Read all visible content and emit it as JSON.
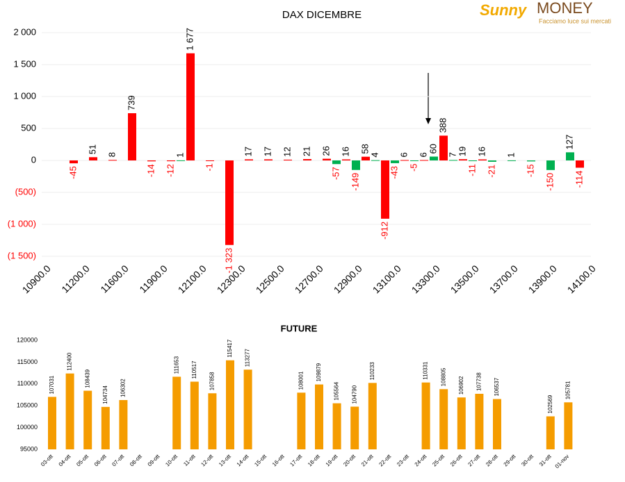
{
  "logo": {
    "brand": "Sunny",
    "name": "MONEY",
    "tagline": "Facciamo luce sui mercati"
  },
  "chart_data": [
    {
      "type": "bar",
      "title": "DAX DICEMBRE",
      "categories": [
        "10900.0",
        null,
        "11200.0",
        null,
        "11600.0",
        null,
        "11900.0",
        null,
        "12100.0",
        null,
        "12300.0",
        null,
        "12500.0",
        null,
        "12700.0",
        null,
        "12900.0",
        null,
        "13100.0",
        null,
        "13300.0",
        null,
        "13500.0",
        null,
        "13700.0",
        null,
        "13900.0",
        null,
        "14100.0"
      ],
      "series": [
        {
          "color": "#00b050",
          "values": [
            null,
            null,
            null,
            null,
            null,
            null,
            null,
            1,
            null,
            null,
            null,
            null,
            null,
            null,
            null,
            -57,
            -149,
            4,
            -43,
            -5,
            60,
            7,
            -11,
            -21,
            1,
            -15,
            -150,
            127,
            null
          ]
        },
        {
          "color": "#ff0000",
          "values": [
            null,
            -45,
            51,
            8,
            739,
            -14,
            -12,
            1677,
            -1,
            -1323,
            17,
            17,
            12,
            21,
            26,
            16,
            58,
            -912,
            6,
            6,
            388,
            19,
            16,
            null,
            null,
            null,
            null,
            -114,
            null
          ],
          "value_labels": [
            null,
            "-45",
            "51",
            "8",
            "739",
            "-14",
            "-12",
            "1 677",
            "-1",
            "-1 323",
            "17",
            "17",
            "12",
            "21",
            "26",
            "16",
            "58",
            "-912",
            "6",
            "6",
            "388",
            "19",
            "16",
            null,
            null,
            null,
            null,
            "-114",
            null
          ]
        }
      ],
      "ylim": [
        -1500,
        2000
      ],
      "yticks": [
        {
          "value": 2000,
          "label": "2 000"
        },
        {
          "value": 1500,
          "label": "1 500"
        },
        {
          "value": 1000,
          "label": "1 000"
        },
        500,
        0,
        {
          "value": -500,
          "label": "(500)"
        },
        {
          "value": -1000,
          "label": "(1 000)"
        },
        {
          "value": -1500,
          "label": "(1 500)"
        }
      ],
      "grid": true,
      "negative_color": "#ff0000"
    },
    {
      "type": "bar",
      "title": "FUTURE",
      "categories": [
        "03-ott",
        "04-ott",
        "05-ott",
        "06-ott",
        "07-ott",
        "08-ott",
        "09-ott",
        "10-ott",
        "11-ott",
        "12-ott",
        "13-ott",
        "14-ott",
        "15-ott",
        "16-ott",
        "17-ott",
        "18-ott",
        "19-ott",
        "20-ott",
        "21-ott",
        "22-ott",
        "23-ott",
        "24-ott",
        "25-ott",
        "26-ott",
        "27-ott",
        "28-ott",
        "29-ott",
        "30-ott",
        "31-ott",
        "01-nov"
      ],
      "values": [
        107031,
        112400,
        108439,
        104734,
        106302,
        null,
        null,
        111653,
        110517,
        107858,
        115417,
        113277,
        null,
        null,
        108001,
        109879,
        105564,
        104790,
        110233,
        null,
        null,
        110331,
        108805,
        106902,
        107738,
        106537,
        null,
        null,
        102569,
        105781
      ],
      "color": "#f59c00",
      "ylim": [
        95000,
        120000
      ],
      "yticks": [
        95000,
        100000,
        105000,
        110000,
        115000,
        120000
      ],
      "grid": false
    }
  ]
}
